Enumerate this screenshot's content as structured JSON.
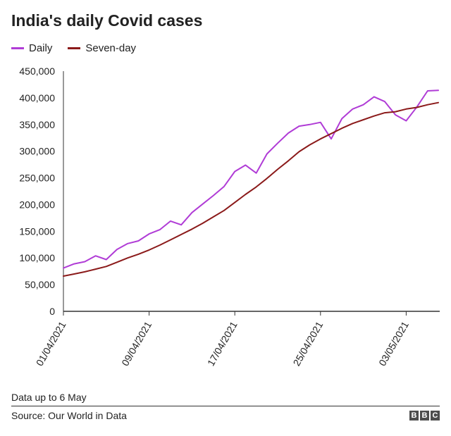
{
  "title": "India's daily Covid cases",
  "footnote": "Data up to 6 May",
  "source": "Source: Our World in Data",
  "logo": [
    "B",
    "B",
    "C"
  ],
  "colors": {
    "daily": "#b03cd6",
    "seven_day": "#8b1a1a",
    "axis": "#333333"
  },
  "chart_data": {
    "type": "line",
    "title": "India's daily Covid cases",
    "xlabel": "",
    "ylabel": "",
    "ylim": [
      0,
      450000
    ],
    "yticks": [
      0,
      50000,
      100000,
      150000,
      200000,
      250000,
      300000,
      350000,
      400000,
      450000
    ],
    "ytick_labels": [
      "0",
      "50,000",
      "100,000",
      "150,000",
      "200,000",
      "250,000",
      "300,000",
      "350,000",
      "400,000",
      "450,000"
    ],
    "xticks": [
      "01/04/2021",
      "09/04/2021",
      "17/04/2021",
      "25/04/2021",
      "03/05/2021"
    ],
    "grid": false,
    "legend": "top-left",
    "x": [
      "01/04/2021",
      "02/04/2021",
      "03/04/2021",
      "04/04/2021",
      "05/04/2021",
      "06/04/2021",
      "07/04/2021",
      "08/04/2021",
      "09/04/2021",
      "10/04/2021",
      "11/04/2021",
      "12/04/2021",
      "13/04/2021",
      "14/04/2021",
      "15/04/2021",
      "16/04/2021",
      "17/04/2021",
      "18/04/2021",
      "19/04/2021",
      "20/04/2021",
      "21/04/2021",
      "22/04/2021",
      "23/04/2021",
      "24/04/2021",
      "25/04/2021",
      "26/04/2021",
      "27/04/2021",
      "28/04/2021",
      "29/04/2021",
      "30/04/2021",
      "01/05/2021",
      "02/05/2021",
      "03/05/2021",
      "04/05/2021",
      "05/05/2021",
      "06/05/2021"
    ],
    "series": [
      {
        "name": "Daily",
        "values": [
          81000,
          89000,
          93000,
          104000,
          97000,
          116000,
          127000,
          132000,
          145000,
          153000,
          169000,
          162000,
          185000,
          201000,
          217000,
          234000,
          262000,
          274000,
          259000,
          295000,
          315000,
          334000,
          347000,
          350000,
          354000,
          323000,
          361000,
          379000,
          387000,
          402000,
          393000,
          368000,
          357000,
          383000,
          413000,
          414000
        ]
      },
      {
        "name": "Seven-day",
        "values": [
          66000,
          70000,
          74000,
          79000,
          84000,
          92000,
          100000,
          107000,
          115000,
          124000,
          134000,
          144000,
          154000,
          165000,
          177000,
          189000,
          204000,
          219000,
          233000,
          249000,
          266000,
          282000,
          299000,
          312000,
          323000,
          333000,
          343000,
          352000,
          359000,
          366000,
          372000,
          374000,
          379000,
          382000,
          387000,
          391000
        ]
      }
    ]
  }
}
